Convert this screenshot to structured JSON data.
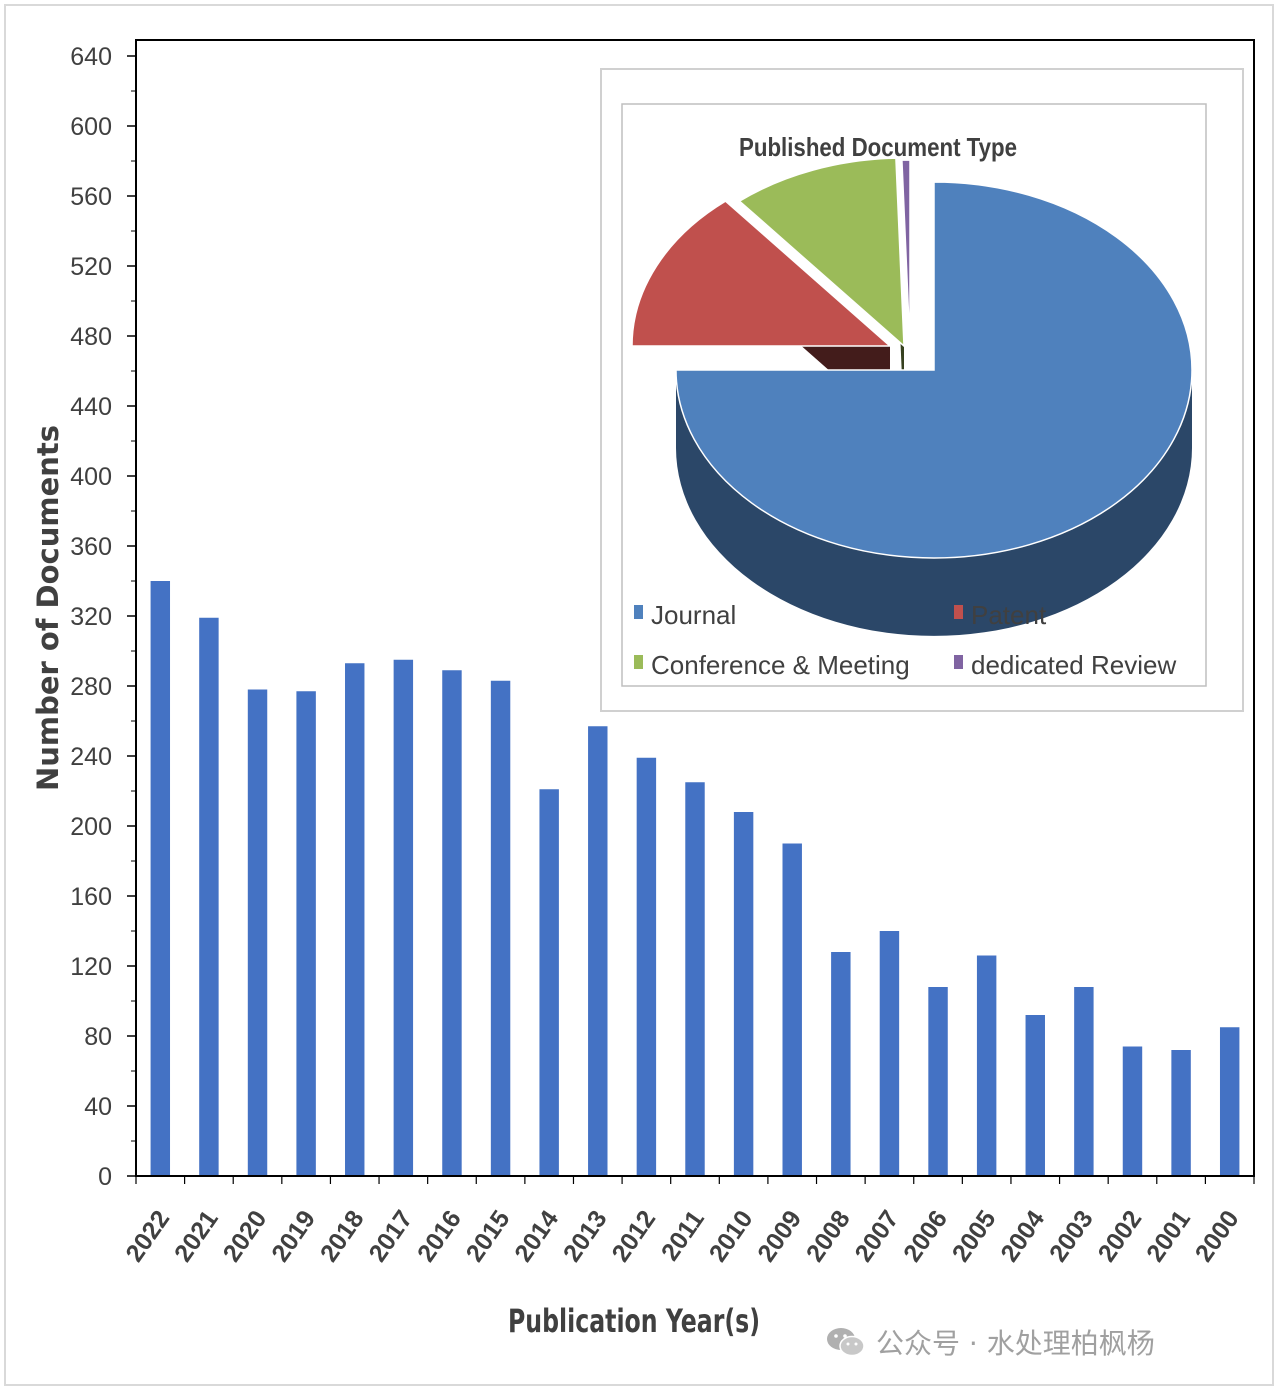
{
  "chart_data": [
    {
      "type": "bar",
      "categories": [
        "2022",
        "2021",
        "2020",
        "2019",
        "2018",
        "2017",
        "2016",
        "2015",
        "2014",
        "2013",
        "2012",
        "2011",
        "2010",
        "2009",
        "2008",
        "2007",
        "2006",
        "2005",
        "2004",
        "2003",
        "2002",
        "2001",
        "2000"
      ],
      "series": [
        {
          "values": [
            340,
            319,
            278,
            277,
            293,
            295,
            289,
            283,
            221,
            257,
            239,
            225,
            208,
            190,
            128,
            140,
            108,
            126,
            92,
            108,
            74,
            72,
            85
          ]
        }
      ],
      "xlabel": "Publication Year(s)",
      "ylabel": "Number of Documents",
      "ylim": [
        0,
        640
      ],
      "yticks": [
        0,
        40,
        80,
        120,
        160,
        200,
        240,
        280,
        320,
        360,
        400,
        440,
        480,
        520,
        560,
        600,
        640
      ],
      "bar_color": "#4472c4",
      "grid": false
    },
    {
      "type": "pie",
      "title": "Published Document Type",
      "labels": [
        "Journal",
        "Patent",
        "Conference & Meeting",
        "dedicated Review"
      ],
      "values": [
        75,
        14,
        10.5,
        0.5
      ],
      "colors": [
        "#4f81bd",
        "#c0504d",
        "#9bbb59",
        "#8064a2"
      ],
      "style": "3d-exploded",
      "legend_position": "bottom"
    }
  ],
  "watermark": {
    "text": "公众号 · 水处理柏枫杨",
    "icon": "wechat-icon"
  }
}
